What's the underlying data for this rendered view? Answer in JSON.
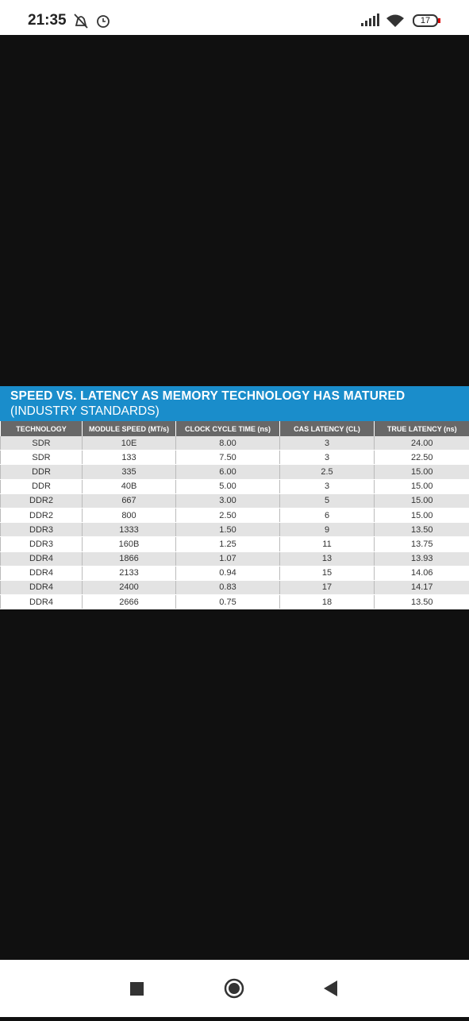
{
  "status_bar": {
    "time": "21:35",
    "battery": "17"
  },
  "figure": {
    "title": "SPEED VS. LATENCY AS MEMORY TECHNOLOGY HAS MATURED",
    "subtitle": "(INDUSTRY STANDARDS)",
    "table": {
      "columns": [
        "TECHNOLOGY",
        "MODULE SPEED (MT/s)",
        "CLOCK CYCLE TIME (ns)",
        "CAS LATENCY (CL)",
        "TRUE LATENCY (ns)"
      ],
      "rows": [
        [
          "SDR",
          "10E",
          "8.00",
          "3",
          "24.00"
        ],
        [
          "SDR",
          "133",
          "7.50",
          "3",
          "22.50"
        ],
        [
          "DDR",
          "335",
          "6.00",
          "2.5",
          "15.00"
        ],
        [
          "DDR",
          "40B",
          "5.00",
          "3",
          "15.00"
        ],
        [
          "DDR2",
          "667",
          "3.00",
          "5",
          "15.00"
        ],
        [
          "DDR2",
          "800",
          "2.50",
          "6",
          "15.00"
        ],
        [
          "DDR3",
          "1333",
          "1.50",
          "9",
          "13.50"
        ],
        [
          "DDR3",
          "160B",
          "1.25",
          "11",
          "13.75"
        ],
        [
          "DDR4",
          "1866",
          "1.07",
          "13",
          "13.93"
        ],
        [
          "DDR4",
          "2133",
          "0.94",
          "15",
          "14.06"
        ],
        [
          "DDR4",
          "2400",
          "0.83",
          "17",
          "14.17"
        ],
        [
          "DDR4",
          "2666",
          "0.75",
          "18",
          "13.50"
        ]
      ]
    }
  }
}
